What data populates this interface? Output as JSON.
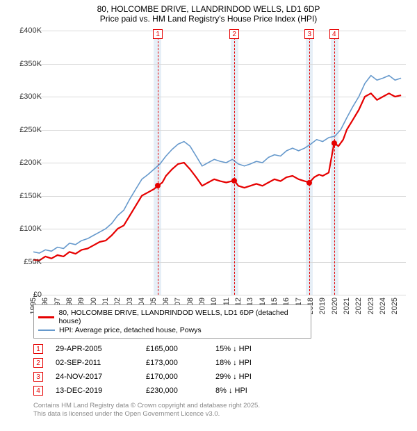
{
  "chart": {
    "title_line1": "80, HOLCOMBE DRIVE, LLANDRINDOD WELLS, LD1 6DP",
    "title_line2": "Price paid vs. HM Land Registry's House Price Index (HPI)",
    "xlim": [
      1995,
      2025.9
    ],
    "xtick_years": [
      1995,
      1996,
      1997,
      1998,
      1999,
      2000,
      2001,
      2002,
      2003,
      2004,
      2005,
      2006,
      2007,
      2008,
      2009,
      2010,
      2011,
      2012,
      2013,
      2014,
      2015,
      2016,
      2017,
      2018,
      2019,
      2020,
      2021,
      2022,
      2023,
      2024,
      2025
    ],
    "ylim": [
      0,
      400000
    ],
    "ytick_step": 50000,
    "yticks_labels": [
      "£0",
      "£50K",
      "£100K",
      "£150K",
      "£200K",
      "£250K",
      "£300K",
      "£350K",
      "£400K"
    ],
    "grid_color": "#d9d9d9",
    "background_color": "#ffffff",
    "band_color": "#dce8f4",
    "bands": [
      {
        "start": 2005.0,
        "end": 2005.6
      },
      {
        "start": 2011.4,
        "end": 2012.0
      },
      {
        "start": 2017.6,
        "end": 2018.2
      },
      {
        "start": 2019.7,
        "end": 2020.3
      }
    ],
    "markers": [
      {
        "n": "1",
        "x": 2005.33,
        "y": 165000
      },
      {
        "n": "2",
        "x": 2011.67,
        "y": 173000
      },
      {
        "n": "3",
        "x": 2017.9,
        "y": 170000
      },
      {
        "n": "4",
        "x": 2019.95,
        "y": 230000
      }
    ],
    "series": [
      {
        "name": "price_paid",
        "label": "80, HOLCOMBE DRIVE, LLANDRINDOD WELLS, LD1 6DP (detached house)",
        "color": "#e60000",
        "width": 2.2,
        "points": [
          [
            1995.0,
            53000
          ],
          [
            1995.5,
            52000
          ],
          [
            1996.0,
            58000
          ],
          [
            1996.5,
            55000
          ],
          [
            1997.0,
            60000
          ],
          [
            1997.5,
            58000
          ],
          [
            1998.0,
            65000
          ],
          [
            1998.5,
            62000
          ],
          [
            1999.0,
            68000
          ],
          [
            1999.5,
            70000
          ],
          [
            2000.0,
            75000
          ],
          [
            2000.5,
            80000
          ],
          [
            2001.0,
            82000
          ],
          [
            2001.5,
            90000
          ],
          [
            2002.0,
            100000
          ],
          [
            2002.5,
            105000
          ],
          [
            2003.0,
            120000
          ],
          [
            2003.5,
            135000
          ],
          [
            2004.0,
            150000
          ],
          [
            2004.5,
            155000
          ],
          [
            2005.0,
            160000
          ],
          [
            2005.33,
            165000
          ],
          [
            2005.7,
            170000
          ],
          [
            2006.0,
            180000
          ],
          [
            2006.5,
            190000
          ],
          [
            2007.0,
            198000
          ],
          [
            2007.5,
            200000
          ],
          [
            2008.0,
            190000
          ],
          [
            2008.5,
            178000
          ],
          [
            2009.0,
            165000
          ],
          [
            2009.5,
            170000
          ],
          [
            2010.0,
            175000
          ],
          [
            2010.5,
            172000
          ],
          [
            2011.0,
            170000
          ],
          [
            2011.67,
            173000
          ],
          [
            2012.0,
            165000
          ],
          [
            2012.5,
            162000
          ],
          [
            2013.0,
            165000
          ],
          [
            2013.5,
            168000
          ],
          [
            2014.0,
            165000
          ],
          [
            2014.5,
            170000
          ],
          [
            2015.0,
            175000
          ],
          [
            2015.5,
            172000
          ],
          [
            2016.0,
            178000
          ],
          [
            2016.5,
            180000
          ],
          [
            2017.0,
            175000
          ],
          [
            2017.5,
            172000
          ],
          [
            2017.9,
            170000
          ],
          [
            2018.3,
            178000
          ],
          [
            2018.7,
            182000
          ],
          [
            2019.0,
            180000
          ],
          [
            2019.5,
            185000
          ],
          [
            2019.95,
            230000
          ],
          [
            2020.3,
            225000
          ],
          [
            2020.7,
            235000
          ],
          [
            2021.0,
            250000
          ],
          [
            2021.5,
            265000
          ],
          [
            2022.0,
            280000
          ],
          [
            2022.5,
            300000
          ],
          [
            2023.0,
            305000
          ],
          [
            2023.5,
            295000
          ],
          [
            2024.0,
            300000
          ],
          [
            2024.5,
            305000
          ],
          [
            2025.0,
            300000
          ],
          [
            2025.5,
            302000
          ]
        ]
      },
      {
        "name": "hpi",
        "label": "HPI: Average price, detached house, Powys",
        "color": "#6699cc",
        "width": 1.6,
        "points": [
          [
            1995.0,
            65000
          ],
          [
            1995.5,
            63000
          ],
          [
            1996.0,
            68000
          ],
          [
            1996.5,
            66000
          ],
          [
            1997.0,
            72000
          ],
          [
            1997.5,
            70000
          ],
          [
            1998.0,
            78000
          ],
          [
            1998.5,
            76000
          ],
          [
            1999.0,
            82000
          ],
          [
            1999.5,
            85000
          ],
          [
            2000.0,
            90000
          ],
          [
            2000.5,
            95000
          ],
          [
            2001.0,
            100000
          ],
          [
            2001.5,
            108000
          ],
          [
            2002.0,
            120000
          ],
          [
            2002.5,
            128000
          ],
          [
            2003.0,
            145000
          ],
          [
            2003.5,
            160000
          ],
          [
            2004.0,
            175000
          ],
          [
            2004.5,
            182000
          ],
          [
            2005.0,
            190000
          ],
          [
            2005.5,
            198000
          ],
          [
            2006.0,
            210000
          ],
          [
            2006.5,
            220000
          ],
          [
            2007.0,
            228000
          ],
          [
            2007.5,
            232000
          ],
          [
            2008.0,
            225000
          ],
          [
            2008.5,
            210000
          ],
          [
            2009.0,
            195000
          ],
          [
            2009.5,
            200000
          ],
          [
            2010.0,
            205000
          ],
          [
            2010.5,
            202000
          ],
          [
            2011.0,
            200000
          ],
          [
            2011.5,
            205000
          ],
          [
            2012.0,
            198000
          ],
          [
            2012.5,
            195000
          ],
          [
            2013.0,
            198000
          ],
          [
            2013.5,
            202000
          ],
          [
            2014.0,
            200000
          ],
          [
            2014.5,
            208000
          ],
          [
            2015.0,
            212000
          ],
          [
            2015.5,
            210000
          ],
          [
            2016.0,
            218000
          ],
          [
            2016.5,
            222000
          ],
          [
            2017.0,
            218000
          ],
          [
            2017.5,
            222000
          ],
          [
            2018.0,
            228000
          ],
          [
            2018.5,
            235000
          ],
          [
            2019.0,
            232000
          ],
          [
            2019.5,
            238000
          ],
          [
            2020.0,
            240000
          ],
          [
            2020.5,
            250000
          ],
          [
            2021.0,
            268000
          ],
          [
            2021.5,
            285000
          ],
          [
            2022.0,
            300000
          ],
          [
            2022.5,
            320000
          ],
          [
            2023.0,
            332000
          ],
          [
            2023.5,
            325000
          ],
          [
            2024.0,
            328000
          ],
          [
            2024.5,
            332000
          ],
          [
            2025.0,
            325000
          ],
          [
            2025.5,
            328000
          ]
        ]
      }
    ]
  },
  "legend": {
    "rows": [
      {
        "color": "#e60000",
        "width": 3,
        "label": "80, HOLCOMBE DRIVE, LLANDRINDOD WELLS, LD1 6DP (detached house)"
      },
      {
        "color": "#6699cc",
        "width": 2,
        "label": "HPI: Average price, detached house, Powys"
      }
    ]
  },
  "transactions": {
    "rows": [
      {
        "n": "1",
        "date": "29-APR-2005",
        "price": "£165,000",
        "diff": "15% ↓ HPI"
      },
      {
        "n": "2",
        "date": "02-SEP-2011",
        "price": "£173,000",
        "diff": "18% ↓ HPI"
      },
      {
        "n": "3",
        "date": "24-NOV-2017",
        "price": "£170,000",
        "diff": "29% ↓ HPI"
      },
      {
        "n": "4",
        "date": "13-DEC-2019",
        "price": "£230,000",
        "diff": "8% ↓ HPI"
      }
    ]
  },
  "footer": {
    "line1": "Contains HM Land Registry data © Crown copyright and database right 2025.",
    "line2": "This data is licensed under the Open Government Licence v3.0."
  }
}
